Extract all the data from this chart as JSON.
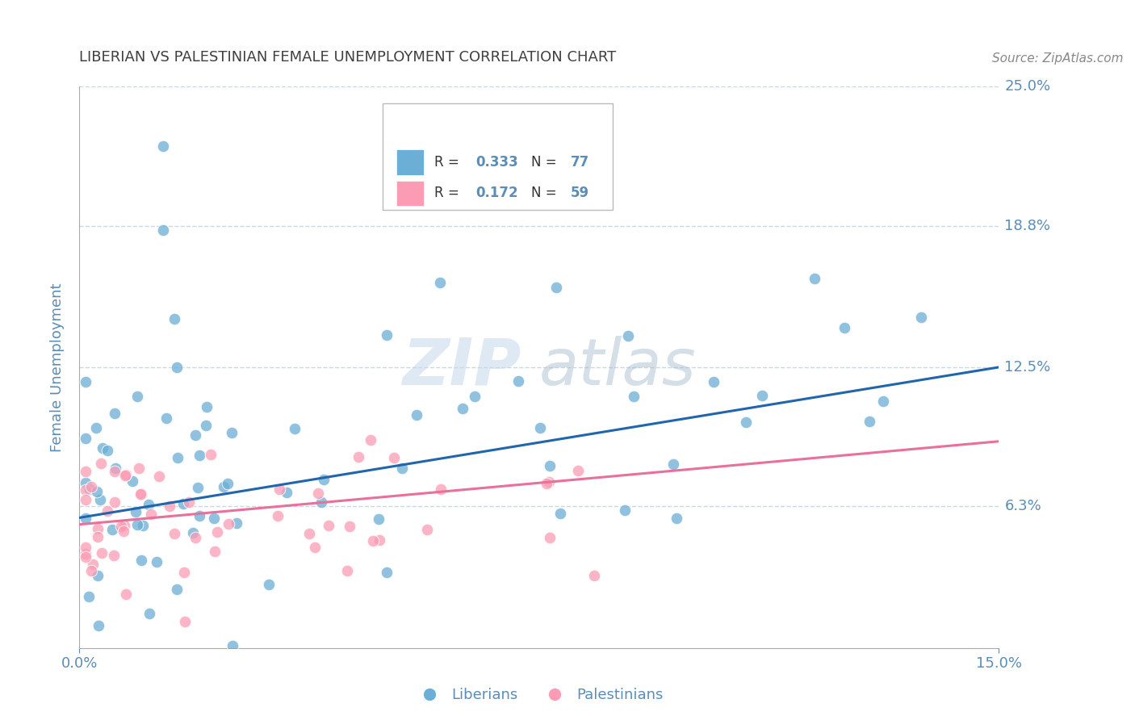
{
  "title": "LIBERIAN VS PALESTINIAN FEMALE UNEMPLOYMENT CORRELATION CHART",
  "source": "Source: ZipAtlas.com",
  "ylabel_label": "Female Unemployment",
  "x_min": 0.0,
  "x_max": 0.15,
  "y_min": 0.0,
  "y_max": 0.25,
  "x_ticks": [
    0.0,
    0.15
  ],
  "x_tick_labels": [
    "0.0%",
    "15.0%"
  ],
  "y_ticks": [
    0.063,
    0.125,
    0.188,
    0.25
  ],
  "y_tick_labels": [
    "6.3%",
    "12.5%",
    "18.8%",
    "25.0%"
  ],
  "liberian_color": "#6baed6",
  "palestinian_color": "#fc9cb4",
  "liberian_line_color": "#2166ac",
  "palestinian_line_color": "#e8709a",
  "legend_R_liberian": "0.333",
  "legend_N_liberian": "77",
  "legend_R_palestinian": "0.172",
  "legend_N_palestinian": "59",
  "watermark_zip": "ZIP",
  "watermark_atlas": "atlas",
  "background_color": "#ffffff",
  "grid_color": "#c8d8e8",
  "title_color": "#404040",
  "tick_color": "#5b8db8",
  "label_color": "#5b8db8",
  "lib_line_start_y": 0.058,
  "lib_line_end_y": 0.125,
  "pal_line_start_y": 0.055,
  "pal_line_end_y": 0.092
}
